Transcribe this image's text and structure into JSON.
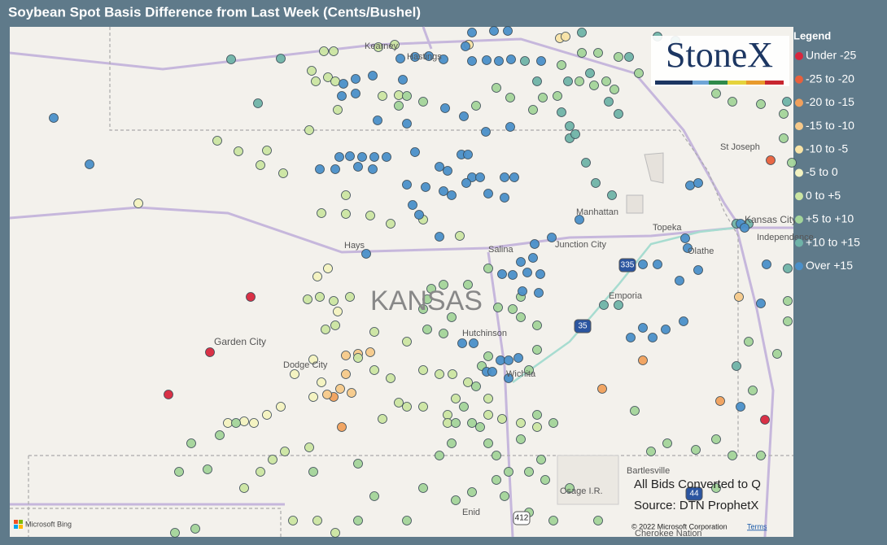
{
  "header": {
    "title": "Soybean Spot Basis Difference from Last Week (Cents/Bushel)"
  },
  "legend": {
    "title": "Legend",
    "items": [
      {
        "label": "Under -25",
        "color": "#d7263d"
      },
      {
        "label": "-25 to -20",
        "color": "#e8603c"
      },
      {
        "label": "-20 to -15",
        "color": "#f0a05c"
      },
      {
        "label": "-15 to -10",
        "color": "#f6c98a"
      },
      {
        "label": "-10 to -5",
        "color": "#f8e3a6"
      },
      {
        "label": "-5 to 0",
        "color": "#f3f2c0"
      },
      {
        "label": "0 to +5",
        "color": "#cbe5a2"
      },
      {
        "label": "+5 to +10",
        "color": "#a3d49a"
      },
      {
        "label": "+10 to +15",
        "color": "#6fb3a8"
      },
      {
        "label": "Over +15",
        "color": "#4a8fc9"
      }
    ]
  },
  "map": {
    "labels": [
      "Kearney",
      "Hastings",
      "St Joseph",
      "Manhattan",
      "Topeka",
      "Kansas City",
      "Independence",
      "Hays",
      "Salina",
      "Junction City",
      "Olathe",
      "KANSAS",
      "Emporia",
      "Hutchinson",
      "Garden City",
      "Dodge City",
      "Wichita",
      "Bartlesville",
      "Osage I.R.",
      "Enid",
      "Cherokee Nation"
    ],
    "shields": [
      "35",
      "335",
      "44",
      "412"
    ]
  },
  "notes": {
    "bids": "All Bids Converted to Q",
    "source": "Source: DTN ProphetX"
  },
  "logo": {
    "text": "StoneX"
  },
  "footer": {
    "bing": "Microsoft Bing",
    "copyright": "© 2022 Microsoft Corporation",
    "terms": "Terms"
  }
}
